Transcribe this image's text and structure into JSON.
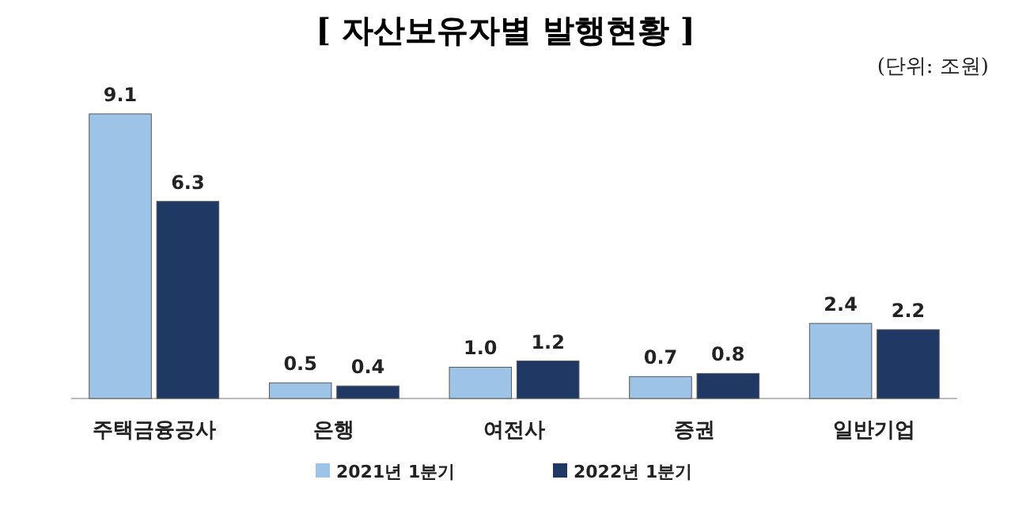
{
  "chart_data": {
    "type": "bar",
    "title": "[ 자산보유자별 발행현황 ]",
    "annotations": [
      "(단위: 조원)"
    ],
    "categories": [
      "주택금융공사",
      "은행",
      "여전사",
      "증권",
      "일반기업"
    ],
    "series": [
      {
        "name": "2021년 1분기",
        "color": "#9dc3e6",
        "values": [
          9.1,
          0.5,
          1.0,
          0.7,
          2.4
        ],
        "value_labels": [
          "9.1",
          "0.5",
          "1.0",
          "0.7",
          "2.4"
        ]
      },
      {
        "name": "2022년 1분기",
        "color": "#1f3864",
        "values": [
          6.3,
          0.4,
          1.2,
          0.8,
          2.2
        ],
        "value_labels": [
          "6.3",
          "0.4",
          "1.2",
          "0.8",
          "2.2"
        ]
      }
    ],
    "legend": "bottom"
  }
}
